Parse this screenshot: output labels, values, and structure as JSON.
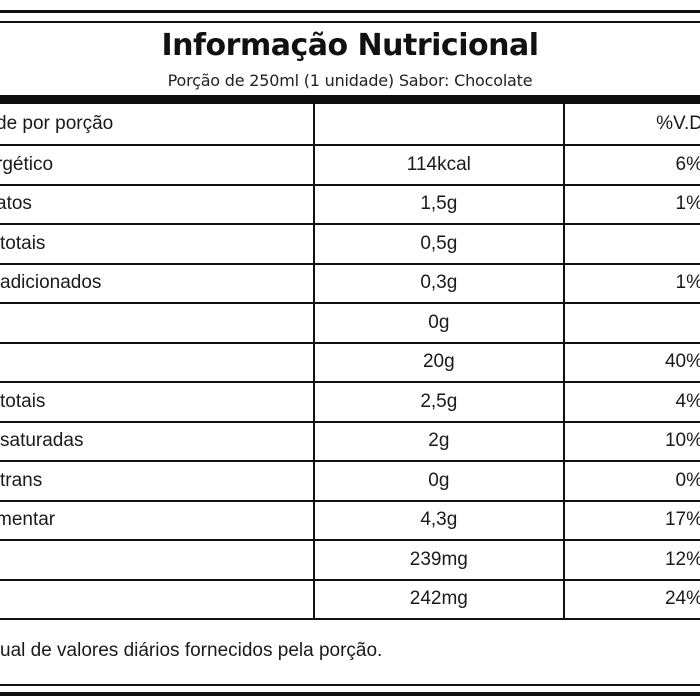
{
  "label": {
    "title": "Informação Nutricional",
    "subtitle": "Porção de 250ml (1 unidade) Sabor: Chocolate",
    "header": {
      "col1": "de por porção",
      "col2": "",
      "col3": "%V.D"
    },
    "rows": [
      {
        "name": "rgético",
        "amount": "114kcal",
        "dv": "6%"
      },
      {
        "name": "atos",
        "amount": "1,5g",
        "dv": "1%"
      },
      {
        "name": "totais",
        "amount": "0,5g",
        "dv": ""
      },
      {
        "name": "adicionados",
        "amount": "0,3g",
        "dv": "1%"
      },
      {
        "name": "",
        "amount": "0g",
        "dv": ""
      },
      {
        "name": "",
        "amount": "20g",
        "dv": "40%"
      },
      {
        "name": "totais",
        "amount": "2,5g",
        "dv": "4%"
      },
      {
        "name": "saturadas",
        "amount": "2g",
        "dv": "10%"
      },
      {
        "name": "trans",
        "amount": "0g",
        "dv": "0%"
      },
      {
        "name": "mentar",
        "amount": "4,3g",
        "dv": "17%"
      },
      {
        "name": "",
        "amount": "239mg",
        "dv": "12%"
      },
      {
        "name": "",
        "amount": "242mg",
        "dv": "24%"
      }
    ],
    "footnote": "ual de valores diários fornecidos pela porção."
  }
}
